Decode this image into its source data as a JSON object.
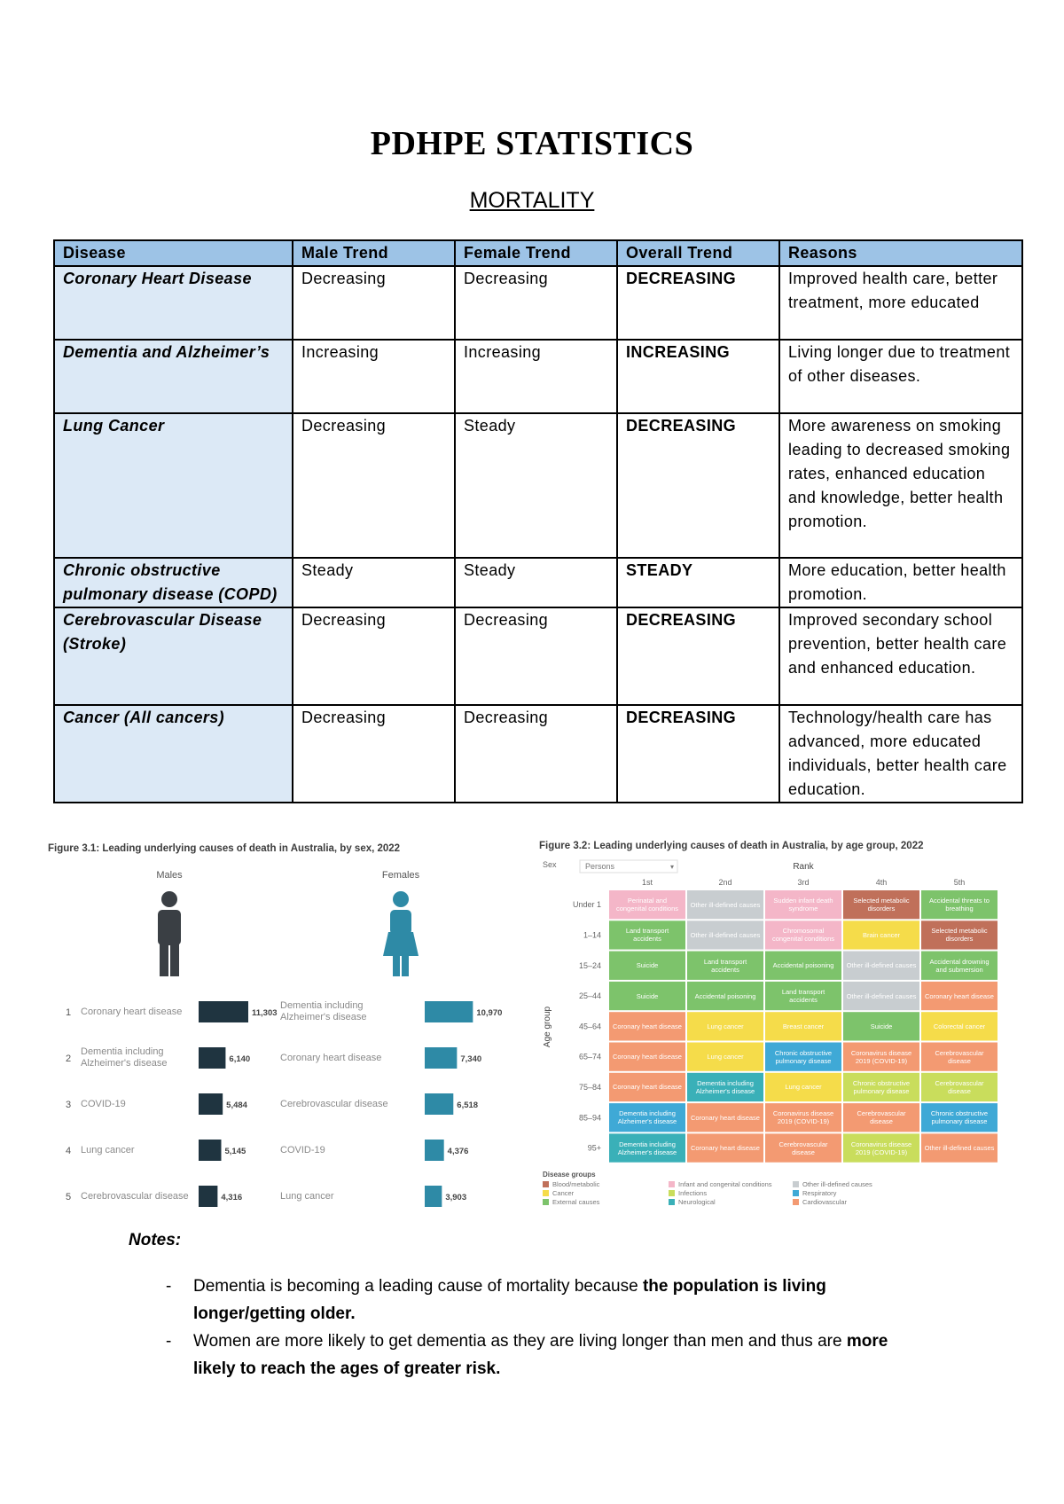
{
  "header": {
    "title": "PDHPE STATISTICS",
    "subtitle": "MORTALITY"
  },
  "table": {
    "columns": [
      "Disease",
      "Male Trend",
      "Female Trend",
      "Overall Trend",
      "Reasons"
    ],
    "rows": [
      [
        "Coronary Heart Disease",
        "Decreasing",
        "Decreasing",
        "DECREASING",
        "Improved health care, better treatment, more educated"
      ],
      [
        "Dementia and Alzheimer’s",
        "Increasing",
        "Increasing",
        "INCREASING",
        "Living longer due to treatment of other diseases."
      ],
      [
        "Lung Cancer",
        "Decreasing",
        "Steady",
        "DECREASING",
        "More awareness on smoking leading to decreased smoking rates, enhanced education and knowledge, better health promotion."
      ],
      [
        "Chronic obstructive pulmonary disease (COPD)",
        "Steady",
        "Steady",
        "STEADY",
        "More education, better health promotion."
      ],
      [
        "Cerebrovascular Disease (Stroke)",
        "Decreasing",
        "Decreasing",
        "DECREASING",
        "Improved secondary school prevention, better health care and enhanced education."
      ],
      [
        "Cancer (All cancers)",
        "Decreasing",
        "Decreasing",
        "DECREASING",
        "Technology/health care has advanced, more educated individuals, better health care education."
      ]
    ]
  },
  "figure_3_1": {
    "title": "Figure 3.1: Leading underlying causes of death in Australia, by sex, 2022",
    "ranks": [
      1,
      2,
      3,
      4,
      5
    ],
    "groups": [
      {
        "name": "Males",
        "color": "#1f3440",
        "causes": [
          "Coronary heart disease",
          "Dementia including Alzheimer's disease",
          "COVID-19",
          "Lung cancer",
          "Cerebrovascular disease"
        ],
        "values": [
          11303,
          6140,
          5484,
          5145,
          4316
        ],
        "value_labels": [
          "11,303",
          "6,140",
          "5,484",
          "5,145",
          "4,316"
        ]
      },
      {
        "name": "Females",
        "color": "#2e8aa6",
        "causes": [
          "Dementia including Alzheimer's disease",
          "Coronary heart disease",
          "Cerebrovascular disease",
          "COVID-19",
          "Lung cancer"
        ],
        "values": [
          10970,
          7340,
          6518,
          4376,
          3903
        ],
        "value_labels": [
          "10,970",
          "7,340",
          "6,518",
          "4,376",
          "3,903"
        ]
      }
    ]
  },
  "figure_3_2": {
    "title": "Figure 3.2: Leading underlying causes of death in Australia, by age group, 2022",
    "filter_label": "Sex",
    "filter_value": "Persons",
    "rank_label": "Rank",
    "ranks": [
      "1st",
      "2nd",
      "3rd",
      "4th",
      "5th"
    ],
    "axis_label": "Age group",
    "age_groups": [
      "Under 1",
      "1–14",
      "15–24",
      "25–44",
      "45–64",
      "65–74",
      "75–84",
      "85–94",
      "95+"
    ],
    "cells": [
      [
        {
          "label": "Perinatal and congenital conditions",
          "color": "#f4b6c8"
        },
        {
          "label": "Other ill-defined causes",
          "color": "#c8cdd0"
        },
        {
          "label": "Sudden infant death syndrome",
          "color": "#f4b6c8"
        },
        {
          "label": "Selected metabolic disorders",
          "color": "#c0705a"
        },
        {
          "label": "Accidental threats to breathing",
          "color": "#7dc36b"
        }
      ],
      [
        {
          "label": "Land transport accidents",
          "color": "#7dc36b"
        },
        {
          "label": "Other ill-defined causes",
          "color": "#c8cdd0"
        },
        {
          "label": "Chromosomal congenital conditions",
          "color": "#f4b6c8"
        },
        {
          "label": "Brain cancer",
          "color": "#f5dc4a"
        },
        {
          "label": "Selected metabolic disorders",
          "color": "#c0705a"
        }
      ],
      [
        {
          "label": "Suicide",
          "color": "#7dc36b"
        },
        {
          "label": "Land transport accidents",
          "color": "#7dc36b"
        },
        {
          "label": "Accidental poisoning",
          "color": "#7dc36b"
        },
        {
          "label": "Other ill-defined causes",
          "color": "#c8cdd0"
        },
        {
          "label": "Accidental drowning and submersion",
          "color": "#7dc36b"
        }
      ],
      [
        {
          "label": "Suicide",
          "color": "#7dc36b"
        },
        {
          "label": "Accidental poisoning",
          "color": "#7dc36b"
        },
        {
          "label": "Land transport accidents",
          "color": "#7dc36b"
        },
        {
          "label": "Other ill-defined causes",
          "color": "#c8cdd0"
        },
        {
          "label": "Coronary heart disease",
          "color": "#f39a72"
        }
      ],
      [
        {
          "label": "Coronary heart disease",
          "color": "#f39a72"
        },
        {
          "label": "Lung cancer",
          "color": "#f5dc4a"
        },
        {
          "label": "Breast cancer",
          "color": "#f5dc4a"
        },
        {
          "label": "Suicide",
          "color": "#7dc36b"
        },
        {
          "label": "Colorectal cancer",
          "color": "#f5dc4a"
        }
      ],
      [
        {
          "label": "Coronary heart disease",
          "color": "#f39a72"
        },
        {
          "label": "Lung cancer",
          "color": "#f5dc4a"
        },
        {
          "label": "Chronic obstructive pulmonary disease",
          "color": "#3fa9d6"
        },
        {
          "label": "Coronavirus disease 2019 (COVID-19)",
          "color": "#f39a72"
        },
        {
          "label": "Cerebrovascular disease",
          "color": "#f39a72"
        }
      ],
      [
        {
          "label": "Coronary heart disease",
          "color": "#f39a72"
        },
        {
          "label": "Dementia including Alzheimer's disease",
          "color": "#3ab0b8"
        },
        {
          "label": "Lung cancer",
          "color": "#f5dc4a"
        },
        {
          "label": "Chronic obstructive pulmonary disease",
          "color": "#c9dd5c"
        },
        {
          "label": "Cerebrovascular disease",
          "color": "#c9dd5c"
        }
      ],
      [
        {
          "label": "Dementia including Alzheimer's disease",
          "color": "#3fa9d6"
        },
        {
          "label": "Coronary heart disease",
          "color": "#f39a72"
        },
        {
          "label": "Coronavirus disease 2019 (COVID-19)",
          "color": "#f39a72"
        },
        {
          "label": "Cerebrovascular disease",
          "color": "#f39a72"
        },
        {
          "label": "Chronic obstructive pulmonary disease",
          "color": "#3fa9d6"
        }
      ],
      [
        {
          "label": "Dementia including Alzheimer's disease",
          "color": "#3ab0b8"
        },
        {
          "label": "Coronary heart disease",
          "color": "#f39a72"
        },
        {
          "label": "Cerebrovascular disease",
          "color": "#f39a72"
        },
        {
          "label": "Coronavirus disease 2019 (COVID-19)",
          "color": "#c9dd5c"
        },
        {
          "label": "Other ill-defined causes",
          "color": "#f39a72"
        }
      ]
    ],
    "legend_title": "Disease groups",
    "legend": [
      {
        "name": "Blood/metabolic",
        "color": "#c0705a"
      },
      {
        "name": "Infant and congenital conditions",
        "color": "#f4b6c8"
      },
      {
        "name": "Other ill-defined causes",
        "color": "#c8cdd0"
      },
      {
        "name": "Cancer",
        "color": "#f5dc4a"
      },
      {
        "name": "Infections",
        "color": "#c9dd5c"
      },
      {
        "name": "Respiratory",
        "color": "#3fa9d6"
      },
      {
        "name": "External causes",
        "color": "#7dc36b"
      },
      {
        "name": "Neurological",
        "color": "#3ab0b8"
      },
      {
        "name": "Cardiovascular",
        "color": "#f39a72"
      }
    ]
  },
  "notes": {
    "heading": "Notes:",
    "items": [
      {
        "text": "Dementia is becoming a leading cause of mortality because ",
        "bold": "the population is living longer/getting older."
      },
      {
        "text": "Women are more likely to get dementia as they are living longer than men and thus are ",
        "bold": "more likely to reach the ages of greater risk."
      }
    ]
  }
}
